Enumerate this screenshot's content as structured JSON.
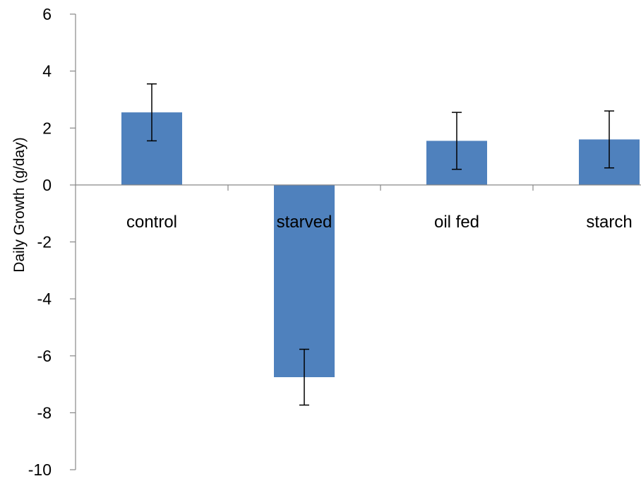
{
  "chart_data": {
    "type": "bar",
    "title": "",
    "xlabel": "",
    "ylabel": "Daily Growth  (g/day)",
    "categories": [
      "control",
      "starved",
      "oil fed",
      "starch"
    ],
    "series": [
      {
        "values": [
          2.55,
          -6.75,
          1.55,
          1.6
        ],
        "error": [
          1.0,
          0.98,
          1.0,
          1.0
        ]
      }
    ],
    "ylim": [
      -10,
      6
    ],
    "yticks": [
      6,
      4,
      2,
      0,
      -2,
      -4,
      -6,
      -8,
      -10
    ],
    "ytick_labels": [
      "6",
      "4",
      "2",
      "0",
      "-2",
      "-4",
      "-6",
      "-8",
      "-10"
    ],
    "grid": false,
    "legend": "none",
    "colors": {
      "bar": "#4F81BD",
      "axis": "#888888",
      "error_bar": "#000000",
      "text": "#000000"
    }
  }
}
